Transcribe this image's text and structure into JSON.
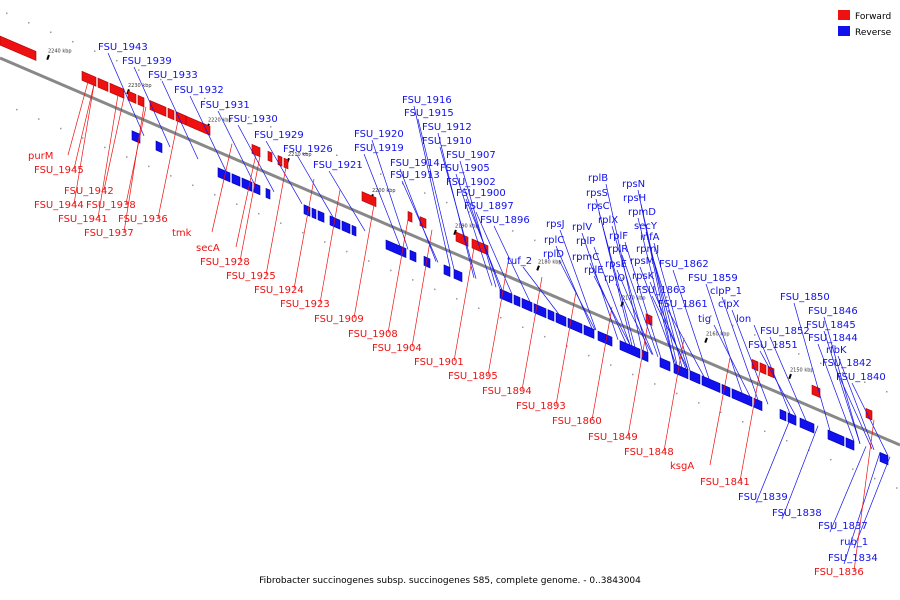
{
  "caption": "Fibrobacter succinogenes subsp. succinogenes S85, complete genome. - 0..3843004",
  "legend": [
    {
      "label": "Forward",
      "color": "#ee1111"
    },
    {
      "label": "Reverse",
      "color": "#1111ee"
    }
  ],
  "colors": {
    "forward": "#ee1111",
    "reverse": "#1111ee",
    "axis": "#888888"
  },
  "scale_ticks": [
    "2240 kbp",
    "2230 kbp",
    "2220 kbp",
    "2210 kbp",
    "2200 kbp",
    "2190 kbp",
    "2180 kbp",
    "2170 kbp",
    "2160 kbp",
    "2150 kbp"
  ],
  "reverse_labels": [
    "FSU_1943",
    "FSU_1939",
    "FSU_1933",
    "FSU_1932",
    "FSU_1931",
    "FSU_1930",
    "FSU_1929",
    "FSU_1926",
    "FSU_1921",
    "FSU_1920",
    "FSU_1919",
    "FSU_1916",
    "FSU_1915",
    "FSU_1912",
    "FSU_1910",
    "FSU_1914",
    "FSU_1913",
    "FSU_1907",
    "FSU_1905",
    "FSU_1902",
    "FSU_1900",
    "FSU_1897",
    "FSU_1896",
    "tuf_2",
    "rplB",
    "rpsS",
    "rpsC",
    "rplX",
    "rpsN",
    "rpsH",
    "rpmD",
    "secY",
    "infA",
    "rpmJ",
    "rpsK",
    "rpsM",
    "rpsE",
    "rplR",
    "rplF",
    "rplP",
    "rplV",
    "rplC",
    "rpsJ",
    "rplD",
    "rpmC",
    "rplE",
    "rplO",
    "FSU_1862",
    "FSU_1863",
    "FSU_1859",
    "FSU_1861",
    "clpP_1",
    "clpX",
    "tig",
    "lon",
    "FSU_1852",
    "FSU_1851",
    "FSU_1850",
    "FSU_1846",
    "FSU_1845",
    "FSU_1844",
    "rfbK",
    "FSU_1842",
    "FSU_1840",
    "FSU_1839",
    "FSU_1838",
    "FSU_1837",
    "rub_1",
    "FSU_1834"
  ],
  "forward_labels": [
    "purM",
    "FSU_1945",
    "FSU_1942",
    "FSU_1944",
    "FSU_1938",
    "FSU_1941",
    "FSU_1936",
    "FSU_1937",
    "tmk",
    "secA",
    "FSU_1928",
    "FSU_1925",
    "FSU_1924",
    "FSU_1923",
    "FSU_1909",
    "FSU_1908",
    "FSU_1904",
    "FSU_1901",
    "FSU_1895",
    "FSU_1894",
    "FSU_1893",
    "FSU_1860",
    "FSU_1849",
    "FSU_1848",
    "ksgA",
    "FSU_1841",
    "FSU_1836"
  ]
}
